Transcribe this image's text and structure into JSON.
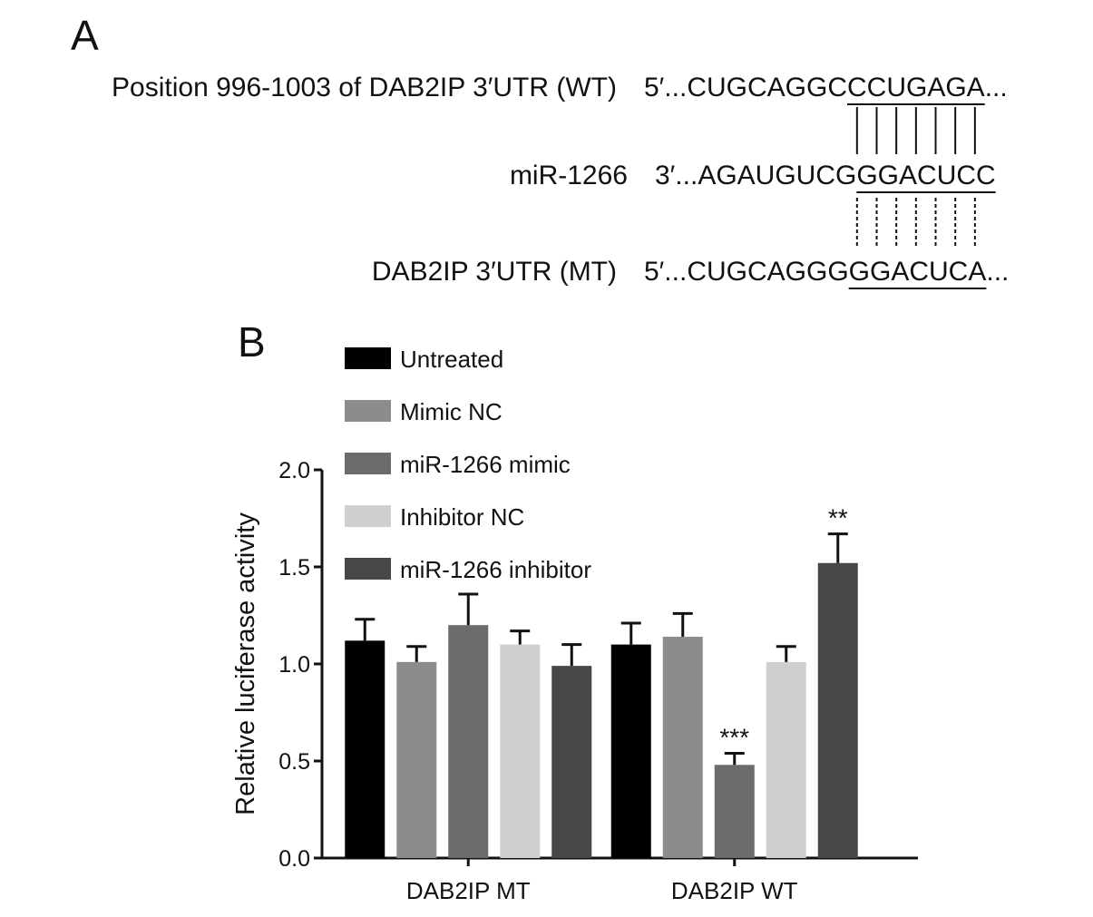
{
  "panel_a": {
    "label": "A",
    "rows": [
      {
        "name": "Position 996-1003 of DAB2IP 3′UTR (WT)",
        "prefix": "5′...CUGCAGGC",
        "site": "CCUGAGA",
        "suffix": "..."
      },
      {
        "name": "miR-1266",
        "prefix": "3′...AGAUGUCG",
        "site": "GGACUCC",
        "suffix": ""
      },
      {
        "name": "DAB2IP 3′UTR (MT)",
        "prefix": "5′...CUGCAGGG",
        "site": "GGACUCA",
        "suffix": "..."
      }
    ]
  },
  "chart_data": {
    "type": "bar",
    "panel_label": "B",
    "y_label": "Relative luciferase activity",
    "categories": [
      "DAB2IP MT",
      "DAB2IP WT"
    ],
    "series": [
      {
        "name": "Untreated",
        "color": "#000000",
        "values": [
          1.12,
          1.1
        ],
        "errors": [
          0.11,
          0.11
        ]
      },
      {
        "name": "Mimic NC",
        "color": "#8c8c8c",
        "values": [
          1.01,
          1.14
        ],
        "errors": [
          0.08,
          0.12
        ]
      },
      {
        "name": "miR-1266 mimic",
        "color": "#6b6b6b",
        "values": [
          1.2,
          0.48
        ],
        "errors": [
          0.16,
          0.06
        ],
        "annotation": {
          "category": "DAB2IP WT",
          "text": "***"
        }
      },
      {
        "name": "Inhibitor NC",
        "color": "#cfcfcf",
        "values": [
          1.1,
          1.01
        ],
        "errors": [
          0.07,
          0.08
        ]
      },
      {
        "name": "miR-1266 inhibitor",
        "color": "#474747",
        "values": [
          0.99,
          1.52
        ],
        "errors": [
          0.11,
          0.15
        ],
        "annotation": {
          "category": "DAB2IP WT",
          "text": "**"
        }
      }
    ],
    "ylim": [
      0,
      2.0
    ],
    "yticks": [
      {
        "value": 0,
        "label": "0.0"
      },
      {
        "value": 0.5,
        "label": "0.5"
      },
      {
        "value": 1,
        "label": "1.0"
      },
      {
        "value": 1.5,
        "label": "1.5"
      },
      {
        "value": 2,
        "label": "2.0"
      }
    ],
    "legend": "top-left"
  }
}
